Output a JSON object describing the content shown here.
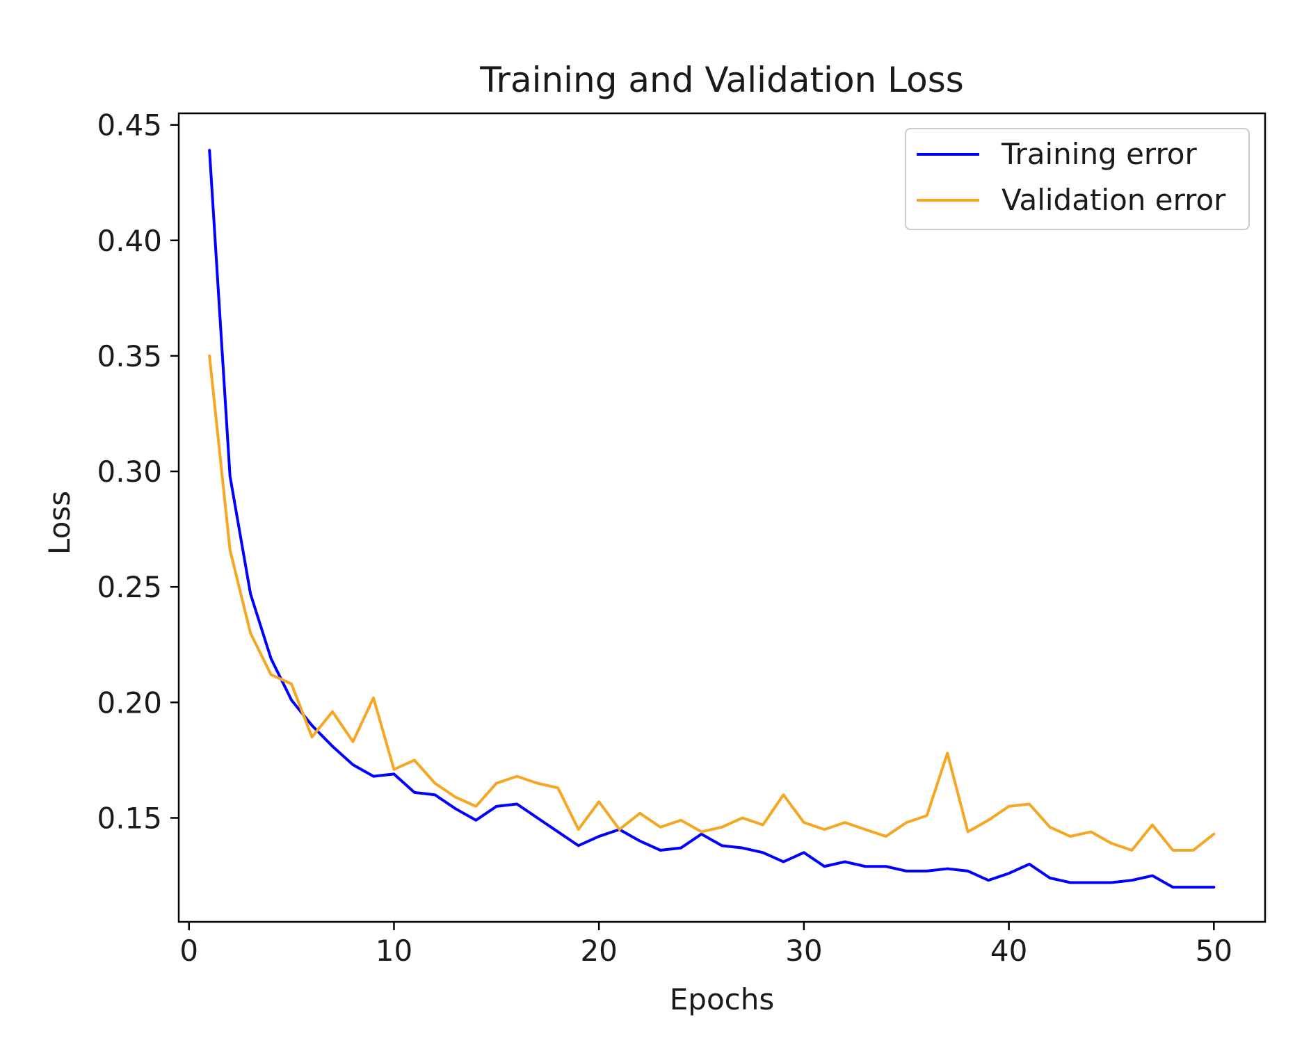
{
  "chart_data": {
    "type": "line",
    "title": "Training and Validation Loss",
    "xlabel": "Epochs",
    "ylabel": "Loss",
    "xlim": [
      -0.5,
      52.5
    ],
    "ylim": [
      0.105,
      0.455
    ],
    "x_ticks": [
      0,
      10,
      20,
      30,
      40,
      50
    ],
    "x_tick_labels": [
      "0",
      "10",
      "20",
      "30",
      "40",
      "50"
    ],
    "y_ticks": [
      0.15,
      0.2,
      0.25,
      0.3,
      0.35,
      0.4,
      0.45
    ],
    "y_tick_labels": [
      "0.15",
      "0.20",
      "0.25",
      "0.30",
      "0.35",
      "0.40",
      "0.45"
    ],
    "grid": false,
    "legend_position": "top-right",
    "x": [
      1,
      2,
      3,
      4,
      5,
      6,
      7,
      8,
      9,
      10,
      11,
      12,
      13,
      14,
      15,
      16,
      17,
      18,
      19,
      20,
      21,
      22,
      23,
      24,
      25,
      26,
      27,
      28,
      29,
      30,
      31,
      32,
      33,
      34,
      35,
      36,
      37,
      38,
      39,
      40,
      41,
      42,
      43,
      44,
      45,
      46,
      47,
      48,
      49,
      50
    ],
    "series": [
      {
        "name": "Training error",
        "color": "#0000ff",
        "values": [
          0.439,
          0.298,
          0.247,
          0.219,
          0.201,
          0.19,
          0.181,
          0.173,
          0.168,
          0.169,
          0.161,
          0.16,
          0.154,
          0.149,
          0.155,
          0.156,
          0.15,
          0.144,
          0.138,
          0.142,
          0.145,
          0.14,
          0.136,
          0.137,
          0.143,
          0.138,
          0.137,
          0.135,
          0.131,
          0.135,
          0.129,
          0.131,
          0.129,
          0.129,
          0.127,
          0.127,
          0.128,
          0.127,
          0.123,
          0.126,
          0.13,
          0.124,
          0.122,
          0.122,
          0.122,
          0.123,
          0.125,
          0.12,
          0.12,
          0.12
        ]
      },
      {
        "name": "Validation error",
        "color": "#f5a623",
        "values": [
          0.35,
          0.266,
          0.23,
          0.212,
          0.208,
          0.185,
          0.196,
          0.183,
          0.202,
          0.171,
          0.175,
          0.165,
          0.159,
          0.155,
          0.165,
          0.168,
          0.165,
          0.163,
          0.145,
          0.157,
          0.145,
          0.152,
          0.146,
          0.149,
          0.144,
          0.146,
          0.15,
          0.147,
          0.16,
          0.148,
          0.145,
          0.148,
          0.145,
          0.142,
          0.148,
          0.151,
          0.178,
          0.144,
          0.149,
          0.155,
          0.156,
          0.146,
          0.142,
          0.144,
          0.139,
          0.136,
          0.147,
          0.136,
          0.136,
          0.143
        ]
      }
    ]
  }
}
